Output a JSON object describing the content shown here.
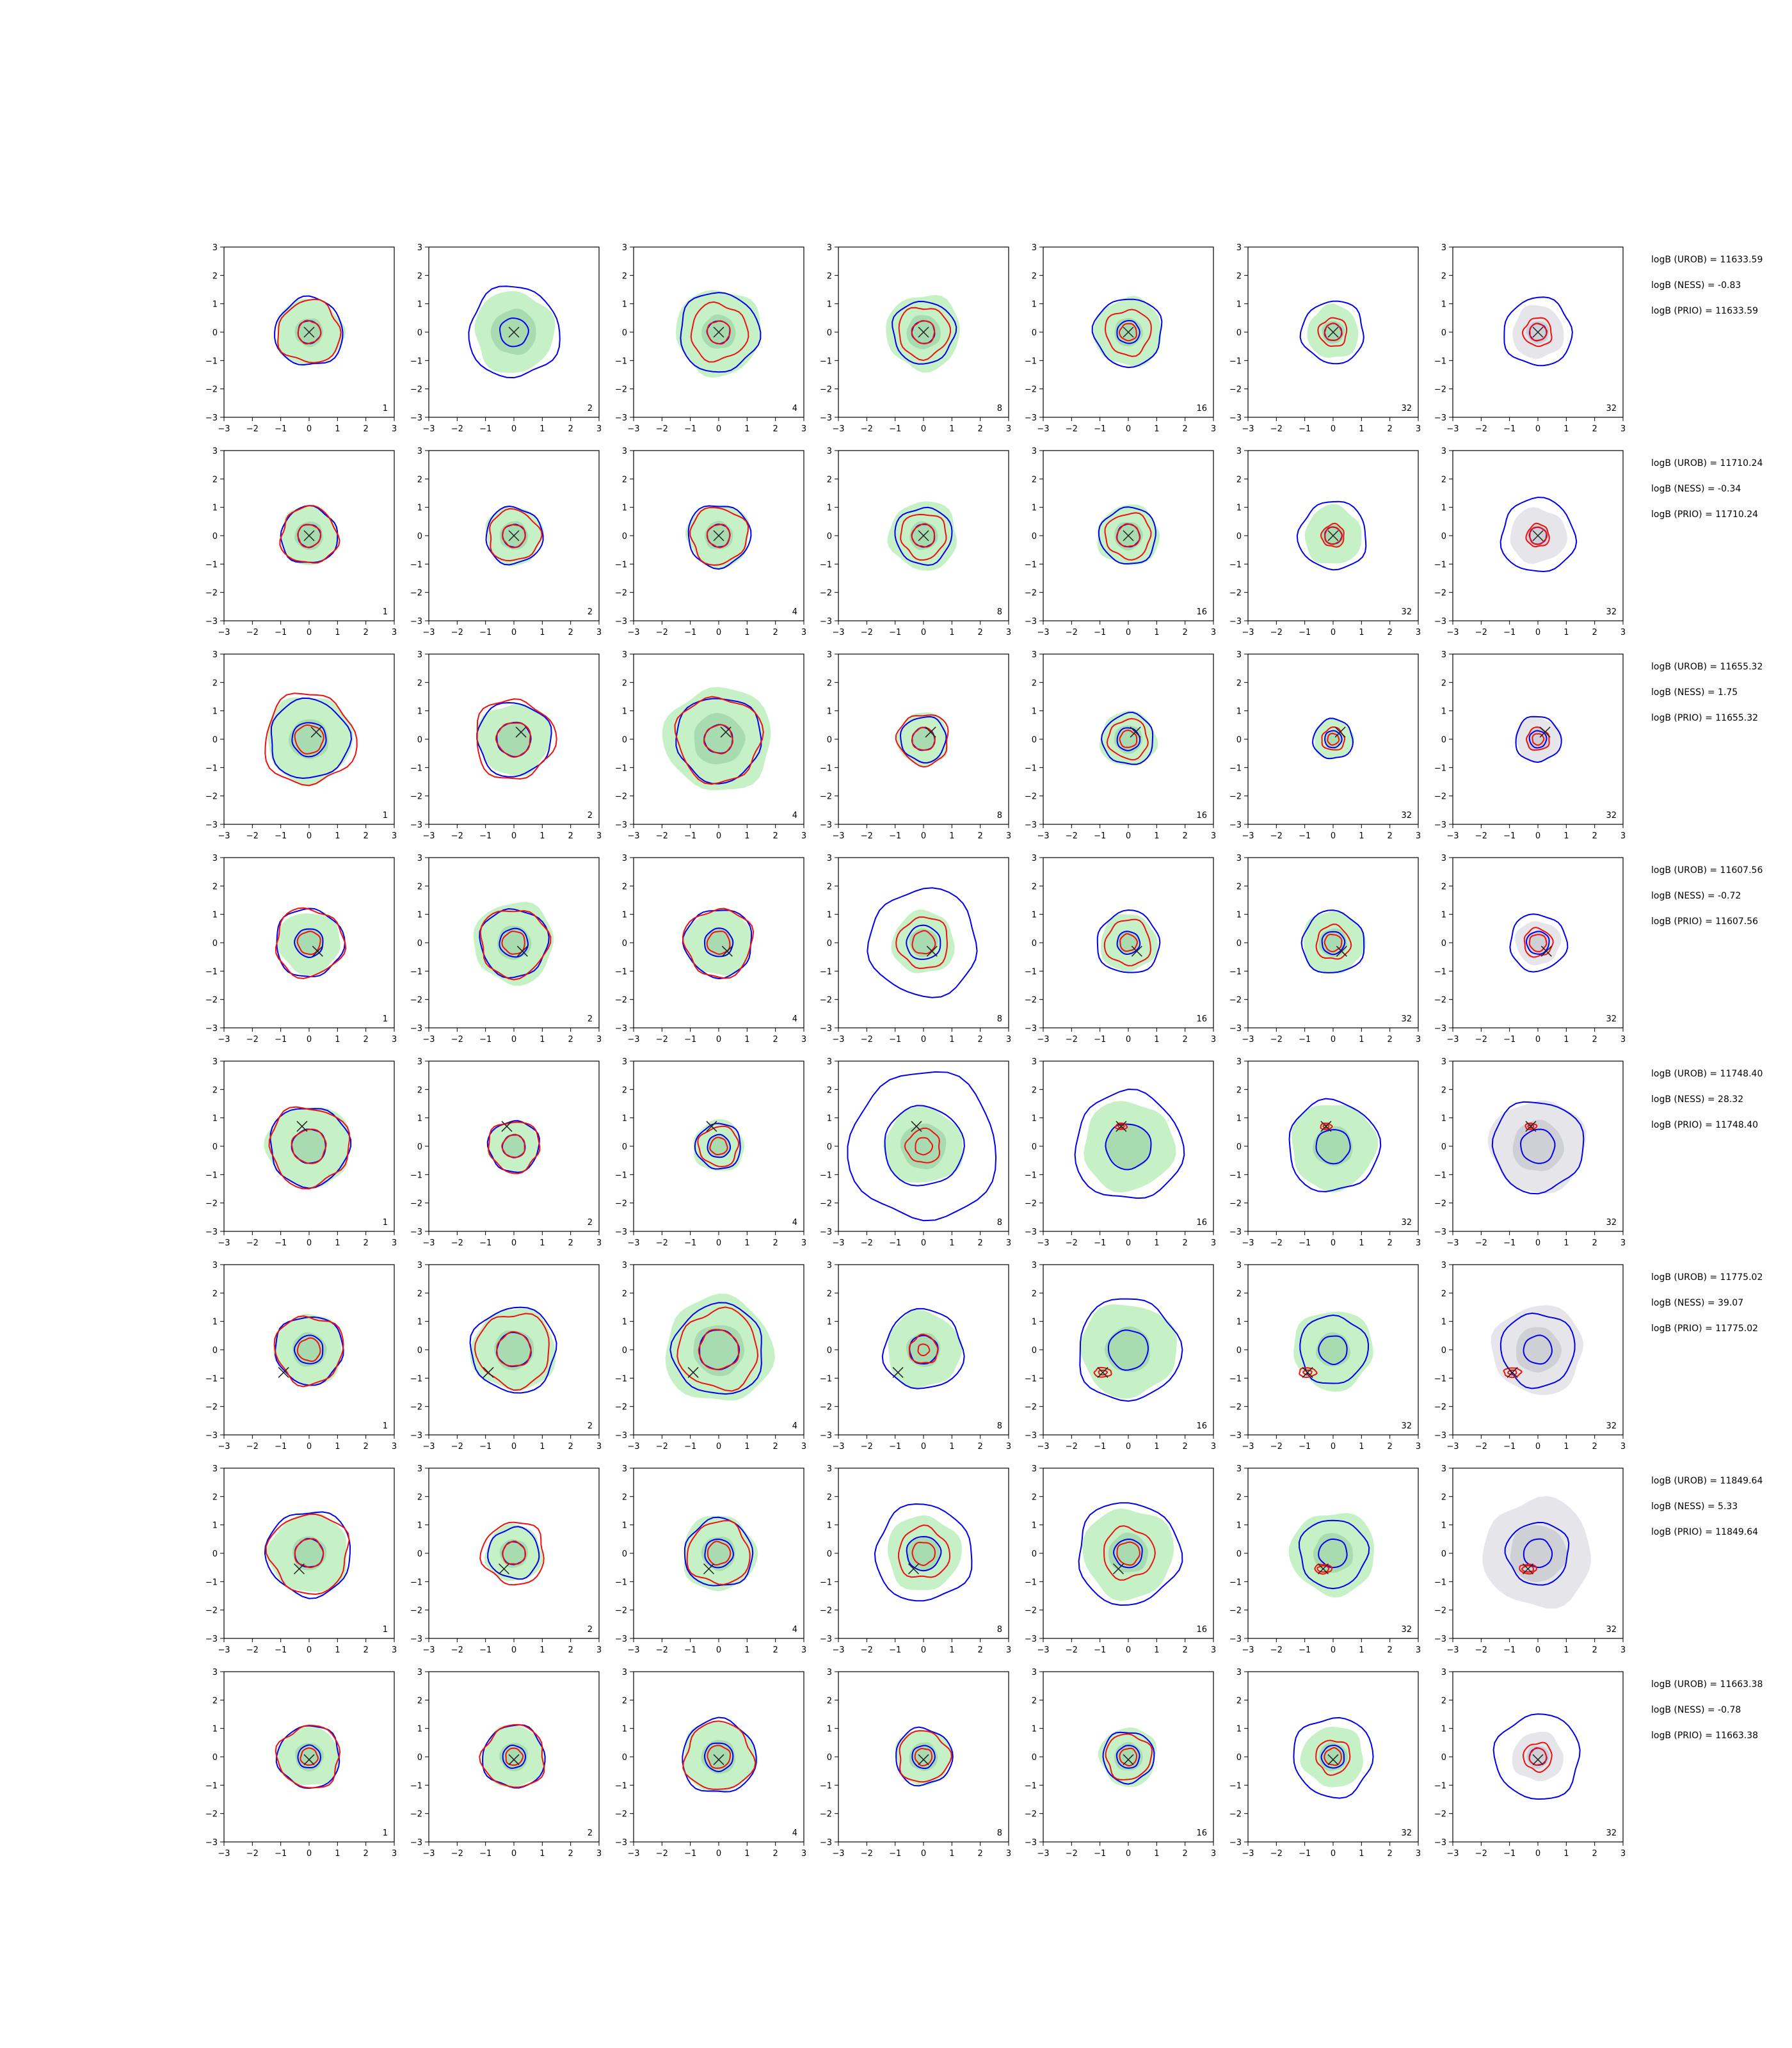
{
  "chart_data": {
    "type": "contour-grid",
    "rows": 8,
    "cols": 7,
    "xlim": [
      -3,
      3
    ],
    "ylim": [
      -3,
      3
    ],
    "xticks": [
      -3,
      -2,
      -1,
      0,
      1,
      2,
      3
    ],
    "yticks": [
      -3,
      -2,
      -1,
      0,
      1,
      2,
      3
    ],
    "grid": false,
    "colors": {
      "blue_contour": "#0000ee",
      "red_contour": "#ee1111",
      "green_fill": "#c6f0c6",
      "green_fill_inner": "#a8dcb0",
      "gray_fill": "#e6e6ea",
      "gray_fill_inner": "#cfcfd6",
      "marker": "#222222"
    },
    "col_labels": [
      "1",
      "2",
      "4",
      "8",
      "16",
      "32",
      "32"
    ],
    "last_col_fill": "gray",
    "row_annotations": [
      [
        "logB (UROB) = 11633.59",
        "logB (NESS) = -0.83",
        "logB (PRIO) = 11633.59"
      ],
      [
        "logB (UROB) = 11710.24",
        "logB (NESS) = -0.34",
        "logB (PRIO) = 11710.24"
      ],
      [
        "logB (UROB) = 11655.32",
        "logB (NESS) = 1.75",
        "logB (PRIO) = 11655.32"
      ],
      [
        "logB (UROB) = 11607.56",
        "logB (NESS) = -0.72",
        "logB (PRIO) = 11607.56"
      ],
      [
        "logB (UROB) = 11748.40",
        "logB (NESS) = 28.32",
        "logB (PRIO) = 11748.40"
      ],
      [
        "logB (UROB) = 11775.02",
        "logB (NESS) = 39.07",
        "logB (PRIO) = 11775.02"
      ],
      [
        "logB (UROB) = 11849.64",
        "logB (NESS) = 5.33",
        "logB (PRIO) = 11849.64"
      ],
      [
        "logB (UROB) = 11663.38",
        "logB (NESS) = -0.78",
        "logB (PRIO) = 11663.38"
      ]
    ],
    "markers": [
      [
        0,
        0
      ],
      [
        0,
        0
      ],
      [
        0.25,
        0.25
      ],
      [
        0.3,
        -0.3
      ],
      [
        -0.25,
        0.7
      ],
      [
        -0.9,
        -0.8
      ],
      [
        -0.35,
        -0.55
      ],
      [
        0,
        -0.1
      ]
    ],
    "contour_radii": {
      "fill_outer": [
        [
          1.2,
          1.4,
          1.5,
          1.3,
          1.2,
          0.9,
          0.9
        ],
        [
          1.0,
          1.0,
          1.1,
          1.2,
          1.1,
          1.0,
          1.0
        ],
        [
          1.5,
          1.3,
          1.9,
          0.9,
          1.0,
          0.7,
          0.8
        ],
        [
          1.1,
          1.4,
          1.2,
          1.1,
          1.0,
          1.1,
          0.8
        ],
        [
          1.5,
          0.9,
          0.9,
          1.4,
          1.6,
          1.5,
          1.7
        ],
        [
          1.2,
          1.5,
          1.9,
          1.3,
          1.7,
          1.4,
          1.6
        ],
        [
          1.4,
          1.0,
          1.3,
          1.3,
          1.6,
          1.5,
          1.9
        ],
        [
          1.1,
          1.1,
          1.3,
          1.0,
          1.0,
          1.1,
          0.9
        ]
      ],
      "fill_inner": [
        [
          0.5,
          0.8,
          0.6,
          0.6,
          0.5,
          0.4,
          0.4
        ],
        [
          0.5,
          0.5,
          0.5,
          0.5,
          0.5,
          0.4,
          0.4
        ],
        [
          0.7,
          0.6,
          0.9,
          0.4,
          0.5,
          0.3,
          0.4
        ],
        [
          0.5,
          0.6,
          0.5,
          0.5,
          0.4,
          0.5,
          0.4
        ],
        [
          0.6,
          0.4,
          0.4,
          0.8,
          0.8,
          0.7,
          0.9
        ],
        [
          0.6,
          0.7,
          0.9,
          0.6,
          0.8,
          0.6,
          0.8
        ],
        [
          0.6,
          0.5,
          0.6,
          0.6,
          0.7,
          0.7,
          1.0
        ],
        [
          0.5,
          0.5,
          0.6,
          0.5,
          0.5,
          0.5,
          0.4
        ]
      ],
      "blue_outer": [
        [
          1.2,
          1.6,
          1.4,
          1.1,
          1.2,
          1.1,
          1.2
        ],
        [
          1.0,
          1.0,
          1.1,
          1.0,
          1.0,
          1.2,
          1.3
        ],
        [
          1.4,
          1.3,
          1.5,
          0.8,
          0.9,
          0.7,
          0.8
        ],
        [
          1.2,
          1.2,
          1.2,
          1.9,
          1.1,
          1.1,
          1.0
        ],
        [
          1.4,
          0.9,
          0.8,
          2.6,
          1.9,
          1.6,
          1.6
        ],
        [
          1.2,
          1.5,
          1.6,
          1.4,
          1.8,
          1.2,
          1.3
        ],
        [
          1.5,
          0.9,
          1.2,
          1.7,
          1.8,
          1.2,
          1.1
        ],
        [
          1.1,
          1.1,
          1.3,
          1.0,
          0.9,
          1.4,
          1.5
        ]
      ],
      "blue_inner": [
        [
          0.4,
          0.5,
          0.4,
          0.4,
          0.4,
          0.3,
          0.3
        ],
        [
          0.4,
          0.4,
          0.4,
          0.4,
          0.4,
          0.3,
          0.3
        ],
        [
          0.6,
          0.6,
          0.5,
          0.4,
          0.4,
          0.3,
          0.3
        ],
        [
          0.5,
          0.5,
          0.5,
          0.6,
          0.4,
          0.4,
          0.4
        ],
        [
          0.6,
          0.4,
          0.4,
          1.4,
          0.8,
          0.6,
          0.6
        ],
        [
          0.5,
          0.6,
          0.7,
          0.5,
          0.7,
          0.5,
          0.5
        ],
        [
          0.5,
          0.4,
          0.5,
          0.6,
          0.5,
          0.5,
          0.5
        ],
        [
          0.4,
          0.4,
          0.5,
          0.4,
          0.4,
          0.4,
          0.3
        ]
      ],
      "red_outer": [
        [
          1.1,
          0.0,
          1.0,
          0.9,
          0.8,
          0.5,
          0.5
        ],
        [
          1.0,
          0.9,
          1.0,
          0.8,
          0.8,
          0.4,
          0.4
        ],
        [
          1.6,
          1.4,
          1.5,
          0.9,
          0.7,
          0.4,
          0.4
        ],
        [
          1.2,
          1.2,
          1.2,
          0.9,
          0.8,
          0.6,
          0.5
        ],
        [
          1.4,
          0.9,
          0.7,
          0.6,
          0.2,
          0.2,
          0.2
        ],
        [
          1.2,
          1.3,
          1.4,
          0.5,
          0.3,
          0.3,
          0.3
        ],
        [
          1.4,
          1.1,
          1.1,
          0.9,
          0.9,
          0.3,
          0.3
        ],
        [
          1.1,
          1.1,
          1.2,
          0.9,
          0.8,
          0.6,
          0.5
        ]
      ],
      "red_inner": [
        [
          0.4,
          0.0,
          0.4,
          0.4,
          0.3,
          0.3,
          0.3
        ],
        [
          0.4,
          0.4,
          0.4,
          0.4,
          0.4,
          0.3,
          0.3
        ],
        [
          0.5,
          0.6,
          0.5,
          0.4,
          0.3,
          0.2,
          0.2
        ],
        [
          0.4,
          0.4,
          0.4,
          0.4,
          0.3,
          0.3,
          0.3
        ],
        [
          0.6,
          0.4,
          0.3,
          0.3,
          0.1,
          0.1,
          0.1
        ],
        [
          0.4,
          0.6,
          0.7,
          0.2,
          0.15,
          0.15,
          0.15
        ],
        [
          0.5,
          0.4,
          0.4,
          0.4,
          0.4,
          0.2,
          0.2
        ],
        [
          0.3,
          0.3,
          0.4,
          0.3,
          0.3,
          0.3,
          0.3
        ]
      ]
    }
  }
}
